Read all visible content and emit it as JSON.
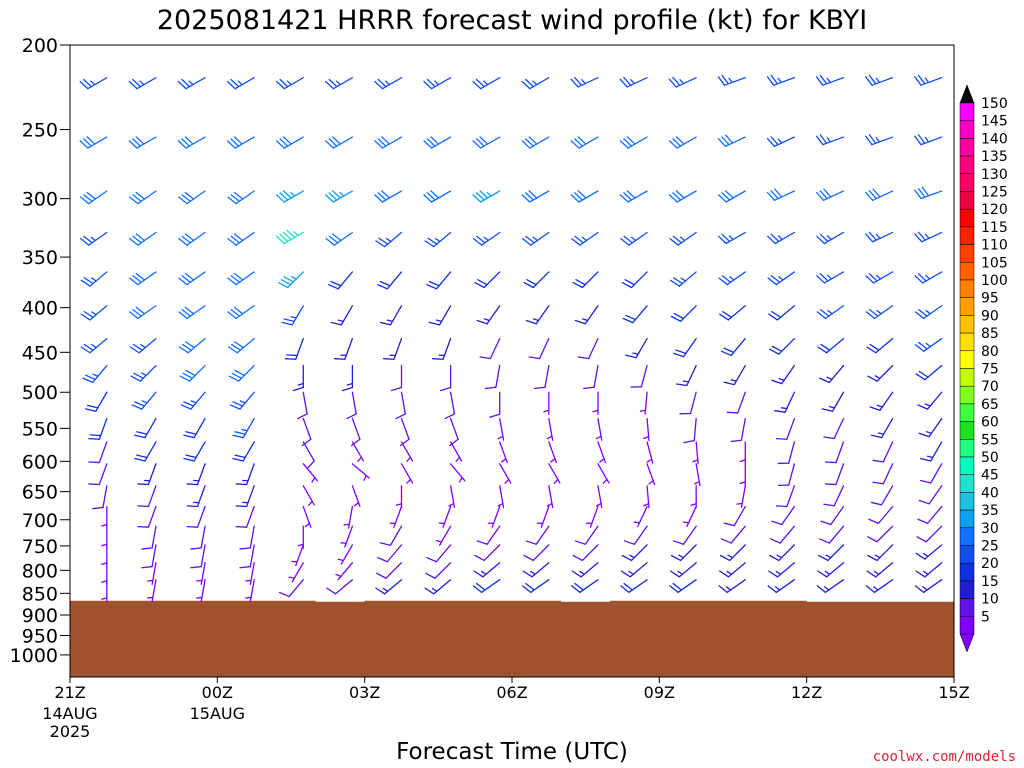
{
  "chart_data": {
    "type": "wind-barb",
    "title": "2025081421 HRRR forecast wind profile (kt) for KBYI",
    "xlabel": "Forecast Time (UTC)",
    "ylabel": "",
    "credit": "coolwx.com/models",
    "y_ticks": [
      "200",
      "250",
      "300",
      "350",
      "400",
      "450",
      "500",
      "550",
      "600",
      "650",
      "700",
      "750",
      "800",
      "850",
      "900",
      "950",
      "1000"
    ],
    "y_tick_values": [
      200,
      250,
      300,
      350,
      400,
      450,
      500,
      550,
      600,
      650,
      700,
      750,
      800,
      850,
      900,
      950,
      1000
    ],
    "ylim": [
      200,
      1060
    ],
    "y_scale": "log",
    "y_reversed": true,
    "x_ticks": [
      {
        "hour": 0,
        "label": "21Z",
        "sub": [
          "14AUG",
          "2025"
        ]
      },
      {
        "hour": 3,
        "label": "00Z",
        "sub": [
          "15AUG"
        ]
      },
      {
        "hour": 6,
        "label": "03Z",
        "sub": []
      },
      {
        "hour": 9,
        "label": "06Z",
        "sub": []
      },
      {
        "hour": 12,
        "label": "09Z",
        "sub": []
      },
      {
        "hour": 15,
        "label": "12Z",
        "sub": []
      },
      {
        "hour": 18,
        "label": "15Z",
        "sub": []
      }
    ],
    "xlim": [
      0,
      18
    ],
    "forecast_hours": [
      0.75,
      1.75,
      2.75,
      3.75,
      4.75,
      5.75,
      6.75,
      7.75,
      8.75,
      9.75,
      10.75,
      11.75,
      12.75,
      13.75,
      14.75,
      15.75,
      16.75,
      17.75
    ],
    "barb_levels": [
      218,
      255,
      294,
      328,
      364,
      398,
      434,
      466,
      500,
      536,
      570,
      604,
      640,
      676,
      712,
      748,
      784,
      820
    ],
    "colorbar": {
      "labels": [
        "5",
        "10",
        "15",
        "20",
        "25",
        "30",
        "35",
        "40",
        "45",
        "50",
        "55",
        "60",
        "65",
        "70",
        "75",
        "80",
        "85",
        "90",
        "95",
        "100",
        "105",
        "110",
        "115",
        "120",
        "125",
        "130",
        "135",
        "140",
        "145",
        "150"
      ],
      "colors": [
        "#8000ff",
        "#6010e8",
        "#2020d0",
        "#1030e0",
        "#1050f0",
        "#1070ff",
        "#10a0f0",
        "#20c0e0",
        "#20e0d0",
        "#00ffc0",
        "#20ff80",
        "#20e020",
        "#40ff40",
        "#80ff20",
        "#c0ff00",
        "#ffff00",
        "#ffe000",
        "#ffc000",
        "#ffa000",
        "#ff8000",
        "#ff6000",
        "#ff4000",
        "#ff2000",
        "#ff0000",
        "#f00040",
        "#ff0060",
        "#ff0080",
        "#ff00a0",
        "#ff00c0",
        "#ff00ff"
      ],
      "top_arrow_color": "#000000",
      "bottom_arrow_color": "#8000ff"
    },
    "terrain": {
      "color": "#a0522d",
      "surface_pressure": [
        867,
        867,
        867,
        867,
        867,
        869,
        867,
        867,
        867,
        867,
        869,
        867,
        867,
        867,
        867,
        869,
        869,
        869
      ]
    },
    "wind_speed_kt_by_hour": [
      [
        25,
        30,
        30,
        25,
        25,
        25,
        25,
        25,
        20,
        20,
        10,
        10,
        10,
        5,
        5,
        5,
        5,
        5
      ],
      [
        25,
        30,
        30,
        30,
        30,
        30,
        25,
        25,
        25,
        20,
        20,
        15,
        10,
        10,
        10,
        10,
        5,
        5
      ],
      [
        25,
        30,
        30,
        30,
        30,
        30,
        30,
        30,
        25,
        20,
        20,
        15,
        15,
        10,
        10,
        10,
        5,
        5
      ],
      [
        25,
        30,
        30,
        30,
        30,
        30,
        30,
        30,
        25,
        25,
        20,
        15,
        15,
        10,
        10,
        10,
        5,
        5
      ],
      [
        25,
        30,
        35,
        45,
        35,
        25,
        20,
        15,
        10,
        10,
        10,
        5,
        5,
        5,
        5,
        5,
        5,
        10
      ],
      [
        25,
        30,
        35,
        30,
        20,
        15,
        15,
        15,
        10,
        10,
        5,
        5,
        5,
        5,
        5,
        5,
        5,
        10
      ],
      [
        25,
        30,
        30,
        25,
        20,
        15,
        15,
        10,
        10,
        10,
        5,
        5,
        5,
        5,
        10,
        10,
        10,
        15
      ],
      [
        25,
        30,
        30,
        25,
        20,
        15,
        15,
        10,
        10,
        10,
        5,
        5,
        5,
        5,
        5,
        10,
        10,
        15
      ],
      [
        25,
        30,
        35,
        25,
        20,
        15,
        10,
        10,
        10,
        5,
        5,
        5,
        5,
        5,
        10,
        10,
        15,
        20
      ],
      [
        25,
        30,
        30,
        25,
        20,
        15,
        10,
        10,
        5,
        5,
        5,
        5,
        5,
        5,
        10,
        10,
        15,
        20
      ],
      [
        25,
        30,
        30,
        25,
        20,
        15,
        10,
        10,
        5,
        5,
        5,
        5,
        5,
        5,
        10,
        10,
        15,
        20
      ],
      [
        25,
        30,
        30,
        25,
        20,
        20,
        15,
        10,
        5,
        5,
        5,
        5,
        5,
        5,
        10,
        15,
        15,
        20
      ],
      [
        25,
        30,
        30,
        25,
        25,
        20,
        20,
        15,
        10,
        10,
        5,
        5,
        5,
        5,
        10,
        15,
        15,
        20
      ],
      [
        25,
        30,
        30,
        25,
        25,
        20,
        20,
        15,
        10,
        10,
        5,
        5,
        5,
        10,
        10,
        15,
        15,
        15
      ],
      [
        25,
        25,
        30,
        25,
        25,
        20,
        20,
        15,
        15,
        10,
        10,
        10,
        10,
        10,
        10,
        15,
        15,
        15
      ],
      [
        25,
        25,
        30,
        25,
        25,
        25,
        20,
        15,
        15,
        10,
        10,
        10,
        10,
        10,
        10,
        15,
        15,
        15
      ],
      [
        25,
        25,
        30,
        25,
        25,
        25,
        20,
        15,
        15,
        15,
        10,
        10,
        10,
        10,
        10,
        15,
        15,
        15
      ],
      [
        25,
        25,
        30,
        25,
        25,
        25,
        25,
        20,
        15,
        15,
        15,
        10,
        10,
        10,
        10,
        15,
        15,
        15
      ]
    ],
    "wind_dir_deg_by_hour": [
      [
        240,
        240,
        235,
        235,
        230,
        230,
        230,
        220,
        210,
        200,
        200,
        200,
        190,
        180,
        180,
        180,
        180,
        180
      ],
      [
        240,
        240,
        235,
        235,
        235,
        235,
        230,
        225,
        220,
        210,
        210,
        200,
        200,
        200,
        190,
        190,
        190,
        190
      ],
      [
        240,
        240,
        235,
        235,
        235,
        235,
        230,
        225,
        220,
        210,
        210,
        200,
        200,
        200,
        190,
        190,
        190,
        190
      ],
      [
        240,
        240,
        235,
        235,
        235,
        235,
        230,
        225,
        220,
        210,
        210,
        200,
        200,
        200,
        190,
        190,
        190,
        190
      ],
      [
        240,
        240,
        240,
        240,
        225,
        210,
        200,
        180,
        170,
        160,
        150,
        140,
        150,
        160,
        180,
        200,
        210,
        220
      ],
      [
        240,
        240,
        240,
        235,
        220,
        210,
        200,
        180,
        170,
        160,
        150,
        130,
        160,
        190,
        200,
        210,
        220,
        230
      ],
      [
        240,
        240,
        240,
        230,
        220,
        210,
        200,
        180,
        170,
        160,
        150,
        150,
        180,
        200,
        210,
        220,
        225,
        230
      ],
      [
        240,
        240,
        240,
        230,
        220,
        210,
        200,
        180,
        170,
        160,
        150,
        140,
        170,
        200,
        210,
        220,
        225,
        230
      ],
      [
        240,
        240,
        240,
        235,
        225,
        215,
        205,
        190,
        180,
        170,
        160,
        150,
        170,
        200,
        215,
        225,
        230,
        235
      ],
      [
        240,
        240,
        240,
        235,
        225,
        215,
        205,
        190,
        180,
        170,
        160,
        150,
        170,
        200,
        215,
        225,
        230,
        235
      ],
      [
        245,
        240,
        240,
        235,
        225,
        215,
        205,
        190,
        180,
        170,
        160,
        150,
        170,
        200,
        215,
        225,
        230,
        235
      ],
      [
        245,
        240,
        240,
        235,
        225,
        220,
        210,
        195,
        185,
        175,
        165,
        160,
        175,
        205,
        215,
        225,
        230,
        235
      ],
      [
        245,
        240,
        240,
        235,
        230,
        225,
        215,
        205,
        195,
        185,
        175,
        170,
        180,
        205,
        215,
        225,
        230,
        235
      ],
      [
        250,
        245,
        240,
        240,
        235,
        230,
        220,
        210,
        200,
        190,
        180,
        180,
        190,
        210,
        220,
        225,
        230,
        235
      ],
      [
        250,
        245,
        245,
        240,
        235,
        230,
        225,
        215,
        205,
        200,
        195,
        195,
        200,
        215,
        220,
        225,
        230,
        235
      ],
      [
        250,
        250,
        245,
        240,
        240,
        235,
        230,
        220,
        210,
        205,
        200,
        200,
        205,
        215,
        220,
        225,
        230,
        235
      ],
      [
        250,
        250,
        245,
        245,
        240,
        235,
        230,
        225,
        215,
        210,
        205,
        205,
        210,
        220,
        225,
        225,
        230,
        235
      ],
      [
        250,
        250,
        250,
        245,
        240,
        235,
        235,
        230,
        220,
        215,
        210,
        210,
        215,
        220,
        225,
        230,
        230,
        235
      ]
    ]
  }
}
